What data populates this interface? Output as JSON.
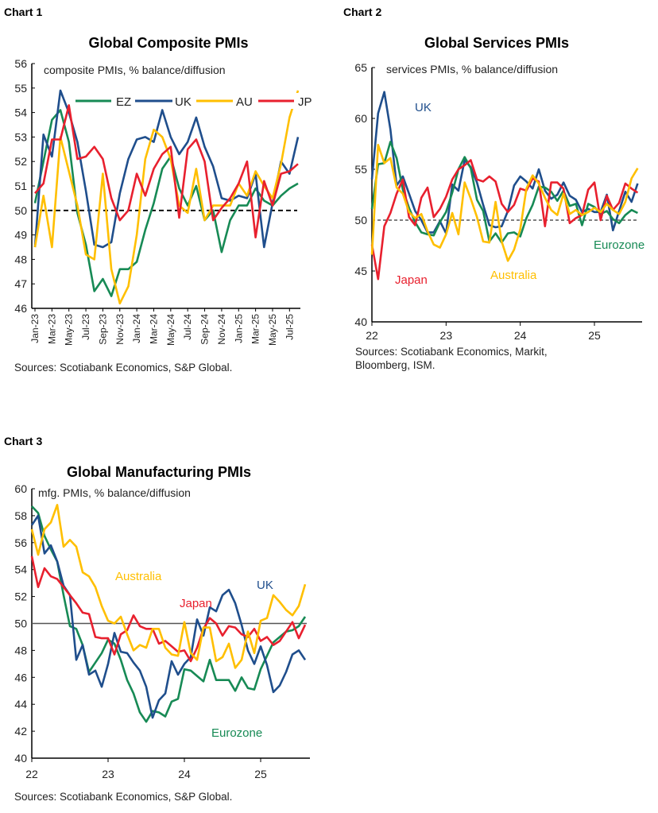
{
  "colors": {
    "EZ": "#178a55",
    "UK": "#1f4e8c",
    "AU": "#ffbf00",
    "JP": "#e8202e",
    "axis": "#000000",
    "ref": "#555555"
  },
  "chart_data": [
    {
      "label": "Chart 1",
      "type": "line",
      "title": "Global Composite PMIs",
      "subtitle": "composite PMIs, % balance/diffusion",
      "source": "Sources: Scotiabank Economics, S&P Global.",
      "ylim": [
        46,
        56
      ],
      "yticks": [
        46,
        47,
        48,
        49,
        50,
        51,
        52,
        53,
        54,
        55,
        56
      ],
      "x_start": "Jan-23",
      "x_end": "Aug-25",
      "frequency": "monthly",
      "xtick_labels": [
        "Jan-23",
        "Mar-23",
        "May-23",
        "Jul-23",
        "Sep-23",
        "Nov-23",
        "Jan-24",
        "Mar-24",
        "May-24",
        "Jul-24",
        "Sep-24",
        "Nov-24",
        "Jan-25",
        "Mar-25",
        "May-25",
        "Jul-25"
      ],
      "reference_line": {
        "value": 50,
        "style": "dashed"
      },
      "legend": "top",
      "series": [
        {
          "name": "EZ",
          "color_key": "EZ",
          "values": [
            50.3,
            52.0,
            53.7,
            54.1,
            52.8,
            49.9,
            48.6,
            46.7,
            47.2,
            46.5,
            47.6,
            47.6,
            47.9,
            49.2,
            50.3,
            51.7,
            52.2,
            50.9,
            50.2,
            51.0,
            49.6,
            50.0,
            48.3,
            49.6,
            50.2,
            50.2,
            50.9,
            50.4,
            50.2,
            50.6,
            50.9,
            51.1
          ]
        },
        {
          "name": "UK",
          "color_key": "UK",
          "values": [
            48.5,
            53.1,
            52.2,
            54.9,
            54.0,
            52.8,
            50.8,
            48.6,
            48.5,
            48.7,
            50.7,
            52.1,
            52.9,
            53.0,
            52.8,
            54.1,
            53.0,
            52.3,
            52.8,
            53.8,
            52.6,
            51.8,
            50.5,
            50.4,
            50.6,
            50.5,
            51.5,
            48.5,
            50.3,
            52.0,
            51.5,
            53.0
          ]
        },
        {
          "name": "AU",
          "color_key": "AU",
          "values": [
            48.5,
            50.6,
            48.5,
            53.0,
            51.6,
            50.2,
            48.2,
            48.0,
            51.5,
            47.6,
            46.2,
            46.9,
            49.0,
            52.1,
            53.3,
            53.0,
            52.1,
            50.2,
            49.9,
            51.7,
            49.6,
            50.2,
            50.2,
            50.2,
            51.1,
            50.6,
            51.6,
            51.0,
            50.5,
            51.9,
            53.8,
            54.9
          ]
        },
        {
          "name": "JP",
          "color_key": "JP",
          "values": [
            50.7,
            51.1,
            52.9,
            52.9,
            54.3,
            52.1,
            52.2,
            52.6,
            52.1,
            50.5,
            49.6,
            50.0,
            51.5,
            50.6,
            51.7,
            52.3,
            52.6,
            49.7,
            52.5,
            52.9,
            52.0,
            49.6,
            50.1,
            50.5,
            51.1,
            52.0,
            48.9,
            51.2,
            50.2,
            51.5,
            51.6,
            51.9
          ]
        }
      ]
    },
    {
      "label": "Chart 2",
      "type": "line",
      "title": "Global Services PMIs",
      "subtitle": "services PMIs, % balance/diffusion",
      "source": [
        "Sources: Scotiabank Economics, Markit,",
        "Bloomberg, ISM."
      ],
      "ylim": [
        40,
        65
      ],
      "yticks": [
        40,
        45,
        50,
        55,
        60,
        65
      ],
      "x_start": "Jan-22",
      "x_end": "Aug-25",
      "frequency": "monthly",
      "xtick_labels": [
        "22",
        "23",
        "24",
        "25"
      ],
      "reference_line": {
        "value": 50,
        "style": "dashed"
      },
      "series": [
        {
          "name": "UK",
          "color_key": "UK",
          "values": [
            54.0,
            60.5,
            62.6,
            58.9,
            53.4,
            54.3,
            52.6,
            50.9,
            50.0,
            48.8,
            48.8,
            49.9,
            48.7,
            53.5,
            52.9,
            55.9,
            55.2,
            53.7,
            51.5,
            49.5,
            49.3,
            49.4,
            50.9,
            53.4,
            54.3,
            53.8,
            53.1,
            55.0,
            52.9,
            52.1,
            52.5,
            53.7,
            52.4,
            52.0,
            50.8,
            51.1,
            50.8,
            50.8,
            52.5,
            49.0,
            50.9,
            52.8,
            51.8,
            53.6
          ]
        },
        {
          "name": "Eurozone",
          "color_key": "EZ",
          "values": [
            51.1,
            55.5,
            55.6,
            57.7,
            56.1,
            53.0,
            51.2,
            49.8,
            48.8,
            48.6,
            48.5,
            49.8,
            50.8,
            52.7,
            55.0,
            56.2,
            55.1,
            52.0,
            50.9,
            47.9,
            48.7,
            47.8,
            48.7,
            48.8,
            48.4,
            50.2,
            51.5,
            53.3,
            53.2,
            52.8,
            51.9,
            52.9,
            51.4,
            51.6,
            49.5,
            51.6,
            51.3,
            50.6,
            50.9,
            50.1,
            49.7,
            50.5,
            51.0,
            50.7
          ]
        },
        {
          "name": "Japan",
          "color_key": "JP",
          "values": [
            47.6,
            44.2,
            49.4,
            50.7,
            52.6,
            54.0,
            50.3,
            49.5,
            52.2,
            53.2,
            50.3,
            51.1,
            52.3,
            54.0,
            55.0,
            55.4,
            55.9,
            54.0,
            53.8,
            54.3,
            53.8,
            51.6,
            50.8,
            51.5,
            53.1,
            52.9,
            54.1,
            53.8,
            49.4,
            53.7,
            53.7,
            53.1,
            49.7,
            50.2,
            50.5,
            53.0,
            53.7,
            50.0,
            52.4,
            51.0,
            51.7,
            53.6,
            53.1,
            52.7
          ]
        },
        {
          "name": "Australia",
          "color_key": "AU",
          "values": [
            46.6,
            57.4,
            55.6,
            56.1,
            53.2,
            52.6,
            50.8,
            50.2,
            50.6,
            48.9,
            47.6,
            47.3,
            48.6,
            50.7,
            48.6,
            53.7,
            52.1,
            50.3,
            47.9,
            47.8,
            51.8,
            47.9,
            46.0,
            47.1,
            49.1,
            53.1,
            54.4,
            53.6,
            52.2,
            51.0,
            50.5,
            52.6,
            50.6,
            51.0,
            50.5,
            50.8,
            51.2,
            50.8,
            51.6,
            51.0,
            50.6,
            51.8,
            54.1,
            55.1
          ]
        }
      ]
    },
    {
      "label": "Chart 3",
      "type": "line",
      "title": "Global Manufacturing PMIs",
      "subtitle": "mfg. PMIs, % balance/diffusion",
      "source": "Sources: Scotiabank Economics, S&P Global.",
      "ylim": [
        40,
        60
      ],
      "yticks": [
        40,
        42,
        44,
        46,
        48,
        50,
        52,
        54,
        56,
        58,
        60
      ],
      "x_start": "Jan-22",
      "x_end": "Aug-25",
      "frequency": "monthly",
      "xtick_labels": [
        "22",
        "23",
        "24",
        "25"
      ],
      "reference_line": {
        "value": 50,
        "style": "solid"
      },
      "series": [
        {
          "name": "Eurozone",
          "color_key": "EZ",
          "values": [
            58.7,
            58.2,
            56.5,
            55.5,
            54.6,
            52.1,
            49.8,
            49.6,
            48.4,
            46.4,
            47.1,
            47.8,
            48.8,
            48.5,
            47.3,
            45.8,
            44.8,
            43.4,
            42.7,
            43.5,
            43.4,
            43.1,
            44.2,
            44.4,
            46.6,
            46.5,
            46.1,
            45.7,
            47.3,
            45.8,
            45.8,
            45.8,
            45.0,
            46.0,
            45.2,
            45.1,
            46.6,
            47.6,
            48.6,
            49.0,
            49.4,
            49.5,
            49.8,
            50.5
          ]
        },
        {
          "name": "UK",
          "color_key": "UK",
          "values": [
            57.3,
            58.0,
            55.2,
            55.8,
            54.6,
            52.8,
            52.1,
            47.3,
            48.4,
            46.2,
            46.5,
            45.3,
            47.0,
            49.3,
            47.9,
            47.8,
            47.1,
            46.5,
            45.3,
            43.0,
            44.3,
            44.8,
            47.2,
            46.2,
            47.0,
            47.5,
            50.3,
            49.1,
            51.2,
            50.9,
            52.1,
            52.5,
            51.5,
            49.9,
            48.0,
            47.0,
            48.3,
            46.9,
            44.9,
            45.4,
            46.4,
            47.7,
            48.0,
            47.3
          ]
        },
        {
          "name": "Japan",
          "color_key": "JP",
          "values": [
            55.0,
            52.7,
            54.1,
            53.5,
            53.3,
            52.7,
            52.1,
            51.5,
            50.8,
            50.7,
            49.0,
            48.9,
            48.9,
            47.7,
            49.2,
            49.5,
            50.6,
            49.8,
            49.6,
            49.6,
            48.5,
            48.7,
            48.3,
            47.9,
            48.0,
            47.2,
            48.2,
            49.6,
            50.4,
            50.0,
            49.1,
            49.8,
            49.7,
            49.2,
            49.0,
            49.6,
            48.7,
            49.0,
            48.4,
            48.7,
            49.4,
            50.1,
            48.9,
            49.9
          ]
        },
        {
          "name": "Australia",
          "color_key": "AU",
          "values": [
            57.0,
            55.1,
            57.0,
            57.5,
            58.8,
            55.7,
            56.2,
            55.7,
            53.8,
            53.5,
            52.7,
            51.3,
            50.2,
            50.0,
            50.5,
            49.2,
            48.0,
            48.4,
            48.2,
            49.6,
            49.6,
            48.2,
            47.7,
            47.6,
            50.1,
            47.8,
            47.3,
            49.7,
            49.7,
            47.2,
            47.5,
            48.5,
            46.7,
            47.3,
            49.4,
            47.8,
            50.2,
            50.4,
            52.1,
            51.6,
            51.0,
            50.6,
            51.3,
            52.9
          ]
        }
      ]
    }
  ]
}
